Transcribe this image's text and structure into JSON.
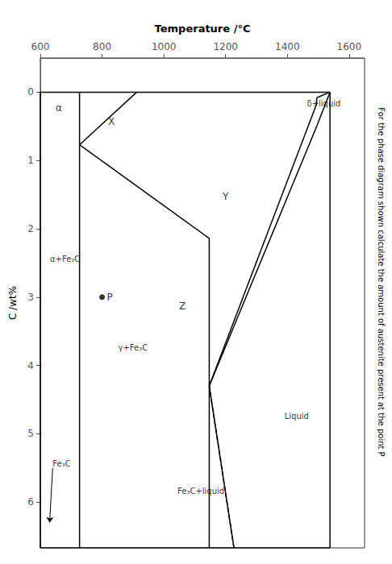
{
  "chart_data": {
    "type": "line",
    "xlabel": "Temperature /°C",
    "ylabel": "C /wt%",
    "xlim": [
      600,
      1650
    ],
    "xticks": [
      600,
      800,
      1000,
      1200,
      1400,
      1600
    ],
    "ylim": [
      6.67,
      -0.5
    ],
    "yticks": [
      0,
      1,
      2,
      3,
      4,
      5,
      6
    ],
    "grid": false,
    "color": "black",
    "series": [
      {
        "x": [
          600,
          1538
        ],
        "values": [
          6.67,
          6.67
        ]
      },
      {
        "x": [
          600,
          600
        ],
        "values": [
          0,
          6.67
        ]
      },
      {
        "x": [
          600,
          1538
        ],
        "values": [
          0,
          0
        ]
      },
      {
        "x": [
          1538,
          1538
        ],
        "values": [
          0,
          6.67
        ]
      },
      {
        "x": [
          1538,
          1495
        ],
        "values": [
          0,
          0.5
        ]
      },
      {
        "x": [
          1495,
          1147
        ],
        "values": [
          0.5,
          4.3
        ]
      },
      {
        "x": [
          1147,
          1227
        ],
        "values": [
          4.3,
          6.67
        ]
      },
      {
        "x": [
          1538,
          1495
        ],
        "values": [
          0,
          0.08
        ]
      },
      {
        "x": [
          1495,
          1495
        ],
        "values": [
          0.08,
          0.17
        ]
      },
      {
        "x": [
          1495,
          1147
        ],
        "values": [
          0.17,
          4.3
        ]
      },
      {
        "x": [
          1147,
          727
        ],
        "values": [
          2.14,
          0.77
        ]
      },
      {
        "x": [
          1147,
          1147
        ],
        "values": [
          2.14,
          6.67
        ]
      },
      {
        "x": [
          727,
          727
        ],
        "values": [
          0.022,
          6.67
        ]
      },
      {
        "x": [
          912,
          727
        ],
        "values": [
          0,
          0.77
        ]
      },
      {
        "x": [
          727,
          727
        ],
        "values": [
          0.022,
          0
        ]
      },
      {
        "x": [
          1227,
          1147
        ],
        "values": [
          6.67,
          4.3
        ],
        "line_style": "dashed"
      },
      {
        "type": "scatter",
        "marker": "circle",
        "x": [
          800
        ],
        "values": [
          3.0
        ]
      }
    ],
    "annotations": [
      {
        "text": "Liquid",
        "x": 1430,
        "y": 4.8
      },
      {
        "text": "Y",
        "x": 1200,
        "y": 1.6
      },
      {
        "text": "Z",
        "x": 1060,
        "y": 3.2
      },
      {
        "text": "X",
        "x": 830,
        "y": 0.5
      },
      {
        "text": "α",
        "x": 660,
        "y": 0.3
      },
      {
        "text": "γ+Fe₃C",
        "x": 900,
        "y": 3.8
      },
      {
        "text": "α+Fe₃C",
        "x": 680,
        "y": 2.5
      },
      {
        "text": "Fe₃C",
        "x": 640,
        "y": 5.5,
        "arrow_to": [
          630,
          6.3
        ]
      },
      {
        "text": "δ+liquid",
        "x": 1518,
        "y": 0.22
      },
      {
        "text": "Fe₃C+liquid",
        "x": 1120,
        "y": 5.9
      },
      {
        "text": "P",
        "x": 800,
        "y": 3.0
      },
      {
        "text": "For the phase diagram shown calculate the amount of austenite present at the point P"
      }
    ]
  }
}
